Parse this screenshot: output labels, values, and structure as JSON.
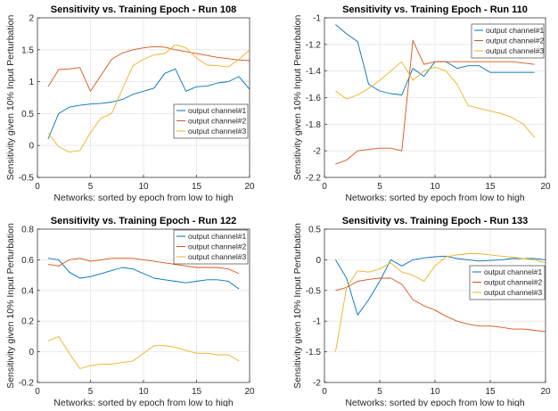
{
  "colors": {
    "background": "#ffffff",
    "grid": "#e6e6e6",
    "axis": "#262626",
    "legend_border": "#262626",
    "series": [
      "#0072BD",
      "#D95319",
      "#EDB120"
    ]
  },
  "chart_data": [
    {
      "type": "line",
      "title": "Sensitivity vs. Training Epoch - Run 108",
      "xlabel": "Networks: sorted by epoch from low to high",
      "ylabel": "Sensitivity given 10% Input Perturbation",
      "xlim": [
        0,
        20
      ],
      "ylim": [
        -0.5,
        2
      ],
      "xticks": [
        "0",
        "5",
        "10",
        "15",
        "20"
      ],
      "yticks": [
        "-0.5",
        "0",
        "0.5",
        "1",
        "1.5",
        "2"
      ],
      "grid": true,
      "legend_position": "middle-right",
      "x": [
        1,
        2,
        3,
        4,
        5,
        6,
        7,
        8,
        9,
        10,
        11,
        12,
        13,
        14,
        15,
        16,
        17,
        18,
        19,
        20
      ],
      "series": [
        {
          "name": "output channel#1",
          "values": [
            0.1,
            0.5,
            0.6,
            0.63,
            0.65,
            0.66,
            0.68,
            0.72,
            0.8,
            0.85,
            0.9,
            1.13,
            1.2,
            0.85,
            0.92,
            0.93,
            0.98,
            1.0,
            1.08,
            0.88
          ]
        },
        {
          "name": "output channel#2",
          "values": [
            0.92,
            1.19,
            1.2,
            1.22,
            0.85,
            1.1,
            1.35,
            1.45,
            1.5,
            1.53,
            1.55,
            1.54,
            1.5,
            1.47,
            1.44,
            1.41,
            1.38,
            1.36,
            1.34,
            1.33
          ]
        },
        {
          "name": "output channel#3",
          "values": [
            0.2,
            -0.02,
            -0.1,
            -0.08,
            0.2,
            0.43,
            0.5,
            0.88,
            1.25,
            1.35,
            1.42,
            1.44,
            1.58,
            1.53,
            1.37,
            1.26,
            1.25,
            1.23,
            1.35,
            1.5
          ]
        }
      ]
    },
    {
      "type": "line",
      "title": "Sensitivity vs. Training Epoch - Run 110",
      "xlabel": "Networks: sorted by epoch from low to high",
      "ylabel": "Sensitivity given 10% Input Perturbation",
      "xlim": [
        0,
        20
      ],
      "ylim": [
        -2.2,
        -1
      ],
      "xticks": [
        "0",
        "5",
        "10",
        "15",
        "20"
      ],
      "yticks": [
        "-2.2",
        "-2",
        "-1.8",
        "-1.6",
        "-1.4",
        "-1.2",
        "-1"
      ],
      "grid": true,
      "legend_position": "top-right",
      "x": [
        1,
        2,
        3,
        4,
        5,
        6,
        7,
        8,
        9,
        10,
        11,
        12,
        13,
        14,
        15,
        16,
        17,
        18,
        19
      ],
      "series": [
        {
          "name": "output channel#1",
          "values": [
            -1.05,
            -1.12,
            -1.18,
            -1.5,
            -1.55,
            -1.57,
            -1.58,
            -1.38,
            -1.44,
            -1.33,
            -1.33,
            -1.38,
            -1.36,
            -1.36,
            -1.41,
            -1.41,
            -1.41,
            -1.41,
            -1.41
          ]
        },
        {
          "name": "output channel#2",
          "values": [
            -2.1,
            -2.07,
            -2.0,
            -1.99,
            -1.98,
            -1.98,
            -2.0,
            -1.17,
            -1.35,
            -1.33,
            -1.33,
            -1.33,
            -1.33,
            -1.33,
            -1.33,
            -1.33,
            -1.33,
            -1.34,
            -1.35
          ]
        },
        {
          "name": "output channel#3",
          "values": [
            -1.55,
            -1.61,
            -1.58,
            -1.53,
            -1.47,
            -1.4,
            -1.33,
            -1.47,
            -1.4,
            -1.37,
            -1.4,
            -1.5,
            -1.66,
            -1.68,
            -1.7,
            -1.72,
            -1.75,
            -1.8,
            -1.9
          ]
        }
      ]
    },
    {
      "type": "line",
      "title": "Sensitivity vs. Training Epoch - Run 122",
      "xlabel": "Networks: sorted by epoch from low to high",
      "ylabel": "Sensitivity given 10% Input Perturbation",
      "xlim": [
        0,
        20
      ],
      "ylim": [
        -0.2,
        0.8
      ],
      "xticks": [
        "0",
        "5",
        "10",
        "15",
        "20"
      ],
      "yticks": [
        "-0.2",
        "0",
        "0.2",
        "0.4",
        "0.6",
        "0.8"
      ],
      "grid": true,
      "legend_position": "top-right",
      "x": [
        1,
        2,
        3,
        4,
        5,
        6,
        7,
        8,
        9,
        10,
        11,
        12,
        13,
        14,
        15,
        16,
        17,
        18,
        19
      ],
      "series": [
        {
          "name": "output channel#1",
          "values": [
            0.61,
            0.6,
            0.52,
            0.48,
            0.49,
            0.51,
            0.53,
            0.55,
            0.54,
            0.51,
            0.48,
            0.47,
            0.46,
            0.45,
            0.46,
            0.47,
            0.47,
            0.46,
            0.41
          ]
        },
        {
          "name": "output channel#2",
          "values": [
            0.57,
            0.56,
            0.6,
            0.61,
            0.59,
            0.6,
            0.61,
            0.61,
            0.61,
            0.6,
            0.59,
            0.58,
            0.57,
            0.56,
            0.55,
            0.55,
            0.55,
            0.54,
            0.51
          ]
        },
        {
          "name": "output channel#3",
          "values": [
            0.07,
            0.1,
            -0.01,
            -0.11,
            -0.09,
            -0.08,
            -0.08,
            -0.07,
            -0.06,
            -0.01,
            0.04,
            0.04,
            0.03,
            0.01,
            -0.01,
            -0.01,
            -0.02,
            -0.02,
            -0.06
          ]
        }
      ]
    },
    {
      "type": "line",
      "title": "Sensitivity vs. Training Epoch - Run 133",
      "xlabel": "Networks: sorted by epoch from low to high",
      "ylabel": "Sensitivity given 10% Input Perturbation",
      "xlim": [
        0,
        20
      ],
      "ylim": [
        -2,
        0.5
      ],
      "xticks": [
        "0",
        "5",
        "10",
        "15",
        "20"
      ],
      "yticks": [
        "-2",
        "-1.5",
        "-1",
        "-0.5",
        "0",
        "0.5"
      ],
      "grid": true,
      "legend_position": "middle-right",
      "x": [
        1,
        2,
        3,
        4,
        5,
        6,
        7,
        8,
        9,
        10,
        11,
        12,
        13,
        14,
        15,
        16,
        17,
        18,
        19,
        20
      ],
      "series": [
        {
          "name": "output channel#1",
          "values": [
            0.0,
            -0.3,
            -0.9,
            -0.65,
            -0.35,
            0.0,
            -0.1,
            0.0,
            0.03,
            0.05,
            0.06,
            0.02,
            0.0,
            -0.02,
            -0.01,
            0.0,
            0.02,
            0.02,
            0.02,
            0.0
          ]
        },
        {
          "name": "output channel#2",
          "values": [
            -0.5,
            -0.45,
            -0.35,
            -0.32,
            -0.3,
            -0.3,
            -0.4,
            -0.65,
            -0.75,
            -0.82,
            -0.92,
            -1.0,
            -1.05,
            -1.08,
            -1.08,
            -1.1,
            -1.13,
            -1.13,
            -1.15,
            -1.17
          ]
        },
        {
          "name": "output channel#3",
          "values": [
            -1.5,
            -0.45,
            -0.18,
            -0.2,
            -0.15,
            -0.05,
            -0.2,
            -0.25,
            -0.35,
            -0.1,
            0.05,
            0.08,
            0.1,
            0.1,
            0.08,
            0.06,
            0.04,
            0.02,
            0.0,
            -0.05
          ]
        }
      ]
    }
  ]
}
